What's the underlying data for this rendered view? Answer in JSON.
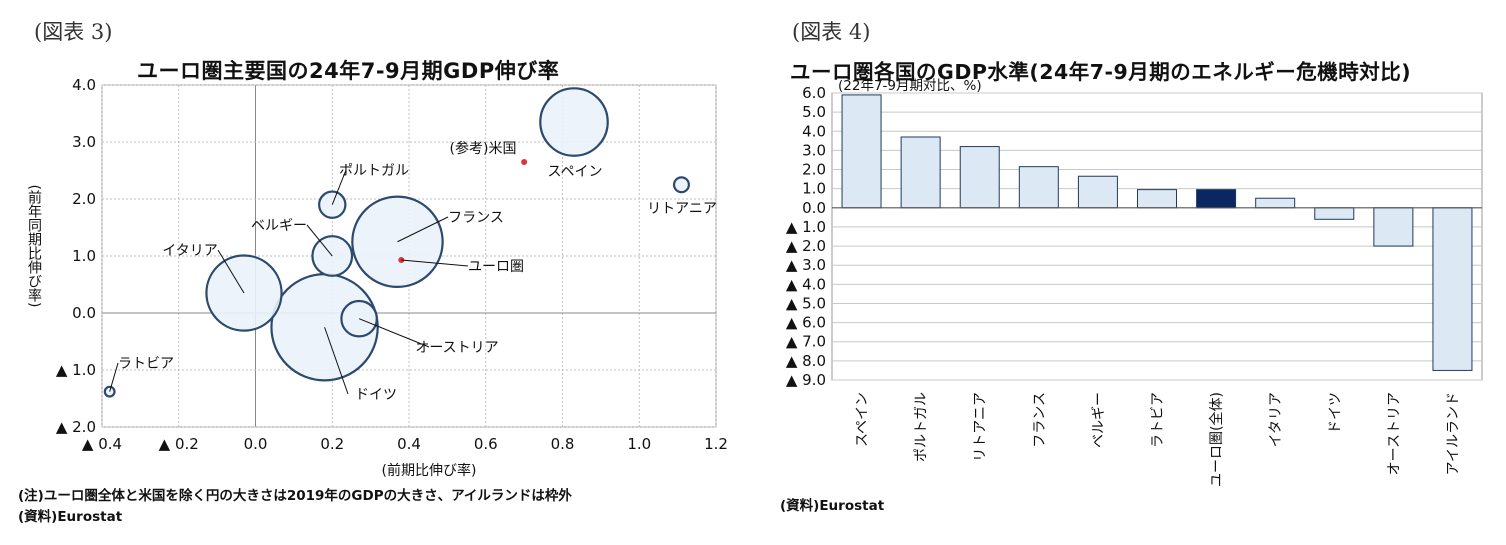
{
  "left": {
    "figure_label": "(図表 3)",
    "title": "ユーロ圏主要国の24年7-9月期GDP伸び率",
    "note": "(注)ユーロ圏全体と米国を除く円の大きさは2019年のGDPの大きさ、アイルランドは枠外",
    "source": "(資料)Eurostat",
    "chart_data": {
      "type": "scatter",
      "subtype": "bubble",
      "xlabel": "(前期比伸び率)",
      "ylabel": "(前年同期比伸び率)",
      "xlim": [
        -0.4,
        1.2
      ],
      "ylim": [
        -2.0,
        4.0
      ],
      "x_ticks": [
        -0.4,
        -0.2,
        0.0,
        0.2,
        0.4,
        0.6,
        0.8,
        1.0,
        1.2
      ],
      "x_tick_labels": [
        "▲ 0.4",
        "▲ 0.2",
        "0.0",
        "0.2",
        "0.4",
        "0.6",
        "0.8",
        "1.0",
        "1.2"
      ],
      "y_ticks": [
        4.0,
        3.0,
        2.0,
        1.0,
        0.0,
        -1.0,
        -2.0
      ],
      "y_tick_labels": [
        "4.0",
        "3.0",
        "2.0",
        "1.0",
        "0.0",
        "▲ 1.0",
        "▲ 2.0"
      ],
      "grid": true,
      "points": [
        {
          "label": "スペイン",
          "x": 0.83,
          "y": 3.35,
          "size": 1.45
        },
        {
          "label": "リトアニア",
          "x": 1.11,
          "y": 2.25,
          "size": 0.07
        },
        {
          "label": "ポルトガル",
          "x": 0.2,
          "y": 1.9,
          "size": 0.22
        },
        {
          "label": "フランス",
          "x": 0.37,
          "y": 1.25,
          "size": 2.6
        },
        {
          "label": "ベルギー",
          "x": 0.2,
          "y": 1.0,
          "size": 0.5
        },
        {
          "label": "イタリア",
          "x": -0.03,
          "y": 0.35,
          "size": 1.8
        },
        {
          "label": "ドイツ",
          "x": 0.18,
          "y": -0.25,
          "size": 3.6
        },
        {
          "label": "オーストリア",
          "x": 0.27,
          "y": -0.1,
          "size": 0.4
        },
        {
          "label": "ラトビア",
          "x": -0.38,
          "y": -1.38,
          "size": 0.03
        },
        {
          "label": "(参考)米国",
          "x": 0.7,
          "y": 2.65,
          "size": 0,
          "marker": "dot"
        },
        {
          "label": "ユーロ圏",
          "x": 0.38,
          "y": 0.93,
          "size": 0,
          "marker": "dot"
        }
      ]
    }
  },
  "right": {
    "figure_label": "(図表 4)",
    "title": "ユーロ圏各国のGDP水準(24年7-9月期のエネルギー危機時対比)",
    "source": "(資料)Eurostat",
    "chart_data": {
      "type": "bar",
      "ylabel": "(22年7-9月期対比、%)",
      "ylim": [
        -9.0,
        6.0
      ],
      "y_ticks": [
        6.0,
        5.0,
        4.0,
        3.0,
        2.0,
        1.0,
        0.0,
        -1.0,
        -2.0,
        -3.0,
        -4.0,
        -5.0,
        -6.0,
        -7.0,
        -8.0,
        -9.0
      ],
      "y_tick_labels": [
        "6.0",
        "5.0",
        "4.0",
        "3.0",
        "2.0",
        "1.0",
        "0.0",
        "▲ 1.0",
        "▲ 2.0",
        "▲ 3.0",
        "▲ 4.0",
        "▲ 5.0",
        "▲ 6.0",
        "▲ 7.0",
        "▲ 8.0",
        "▲ 9.0"
      ],
      "grid": true,
      "categories": [
        "スペイン",
        "ポルトガル",
        "リトアニア",
        "フランス",
        "ベルギー",
        "ラトビア",
        "ユーロ圏(全体)",
        "イタリア",
        "ドイツ",
        "オーストリア",
        "アイルランド"
      ],
      "values": [
        5.9,
        3.7,
        3.2,
        2.15,
        1.65,
        0.95,
        0.95,
        0.5,
        -0.6,
        -2.0,
        -8.5
      ],
      "highlight_index": 6,
      "colors": {
        "bar": "#dde8f5",
        "highlight": "#0b2762",
        "border": "#1f3a5f"
      }
    }
  },
  "colors": {
    "bubble_fill": "#eaf2fa",
    "bubble_stroke": "#2b4a6e",
    "dot": "#e0303a",
    "grid": "#bfbfbf"
  }
}
